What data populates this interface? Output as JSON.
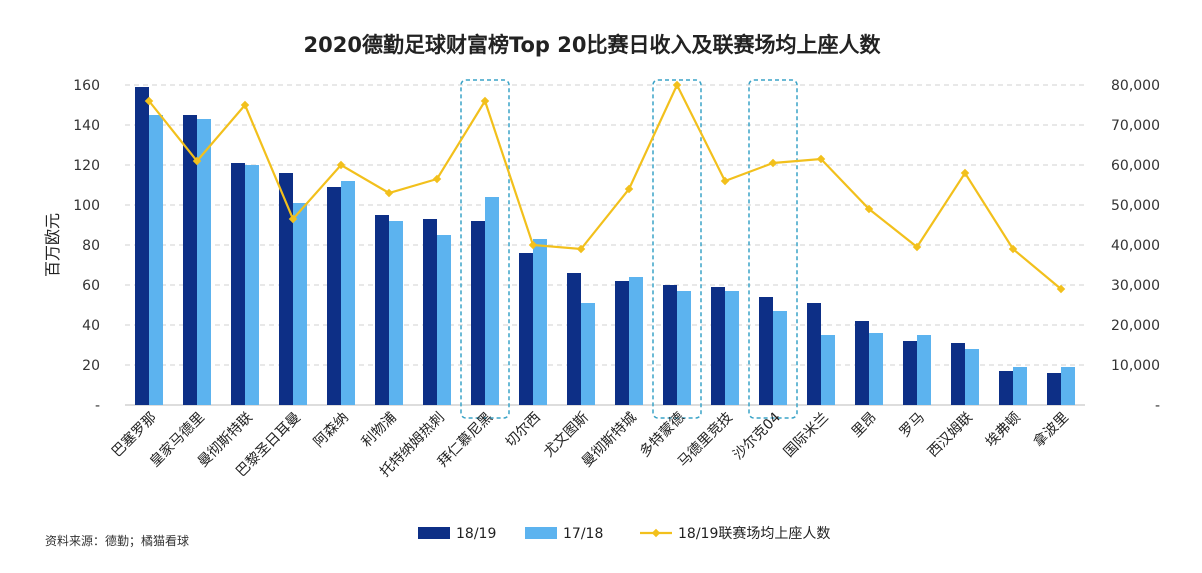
{
  "chart_data": {
    "type": "bar",
    "title": "2020德勤足球财富榜Top 20比赛日收入及联赛场均上座人数",
    "ylabel": "百万欧元",
    "ylim": [
      0,
      160
    ],
    "y_ticks": [
      "-",
      "20",
      "40",
      "60",
      "80",
      "100",
      "120",
      "140",
      "160"
    ],
    "y2lim": [
      0,
      80000
    ],
    "y2_ticks": [
      "-",
      "10,000",
      "20,000",
      "30,000",
      "40,000",
      "50,000",
      "60,000",
      "70,000",
      "80,000"
    ],
    "categories": [
      "巴塞罗那",
      "皇家马德里",
      "曼彻斯特联",
      "巴黎圣日耳曼",
      "阿森纳",
      "利物浦",
      "托特纳姆热刺",
      "拜仁慕尼黑",
      "切尔西",
      "尤文图斯",
      "曼彻斯特城",
      "多特蒙德",
      "马德里竞技",
      "沙尔克04",
      "国际米兰",
      "里昂",
      "罗马",
      "西汉姆联",
      "埃弗顿",
      "拿波里"
    ],
    "series": [
      {
        "name": "18/19",
        "type": "bar",
        "color": "#0d2f86",
        "values": [
          159,
          145,
          121,
          116,
          109,
          95,
          93,
          92,
          76,
          66,
          62,
          60,
          59,
          54,
          51,
          42,
          32,
          31,
          17,
          16
        ]
      },
      {
        "name": "17/18",
        "type": "bar",
        "color": "#5cb3ef",
        "values": [
          145,
          143,
          120,
          101,
          112,
          92,
          85,
          104,
          83,
          51,
          64,
          57,
          57,
          47,
          35,
          36,
          35,
          28,
          19,
          19
        ]
      },
      {
        "name": "18/19联赛场均上座人数",
        "type": "line",
        "axis": "right",
        "color": "#f2c01c",
        "values": [
          76000,
          61000,
          75000,
          46500,
          60000,
          53000,
          56500,
          76000,
          40000,
          39000,
          54000,
          80000,
          56000,
          60500,
          61500,
          49000,
          39500,
          58000,
          39000,
          29000
        ]
      }
    ],
    "highlighted_categories": [
      "拜仁慕尼黑",
      "多特蒙德",
      "沙尔克04"
    ],
    "legend_position": "bottom",
    "grid": true,
    "source_note": "资料来源：德勤；橘猫看球"
  }
}
